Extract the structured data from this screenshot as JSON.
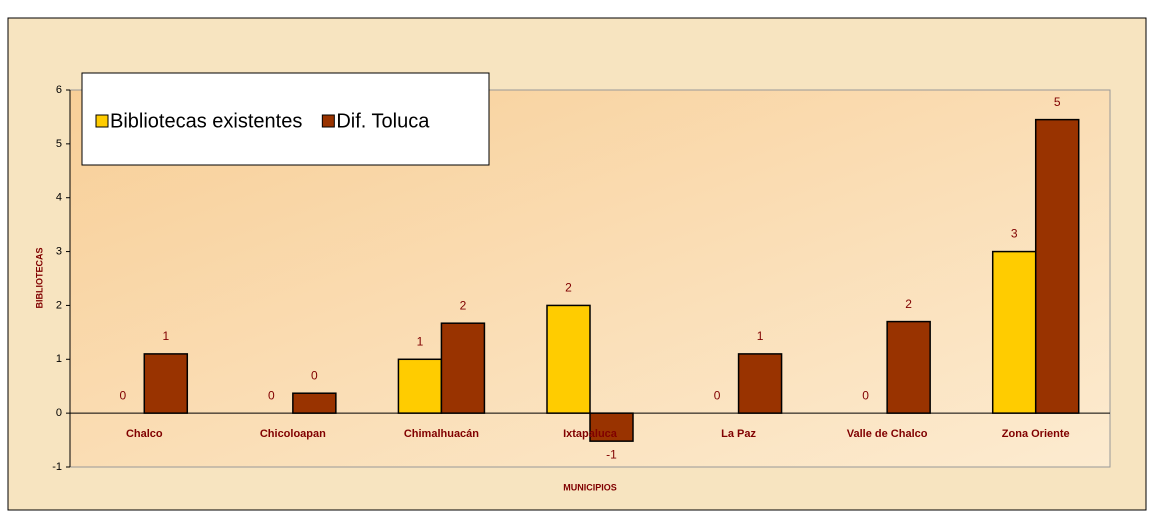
{
  "chart_data": {
    "type": "bar",
    "y_axis_label": "BIBLIOTECAS",
    "x_axis_label": "MUNICIPIOS",
    "categories": [
      "Chalco",
      "Chicoloapan",
      "Chimalhuacán",
      "Ixtapaluca",
      "La Paz",
      "Valle de Chalco",
      "Zona Oriente"
    ],
    "series": [
      {
        "name": "Bibliotecas existentes",
        "color": "#ffcc00",
        "values": [
          0,
          0,
          1,
          2,
          0,
          0,
          3
        ]
      },
      {
        "name": "Dif. Toluca",
        "color": "#993300",
        "values": [
          1.1,
          0.37,
          1.67,
          -0.52,
          1.1,
          1.7,
          5.45
        ],
        "value_labels": [
          "1",
          "0",
          "2",
          "-1",
          "1",
          "2",
          "5"
        ]
      }
    ],
    "ylim": [
      -1,
      6
    ],
    "yticks": [
      -1,
      0,
      1,
      2,
      3,
      4,
      5,
      6
    ],
    "legend": "top-left"
  }
}
